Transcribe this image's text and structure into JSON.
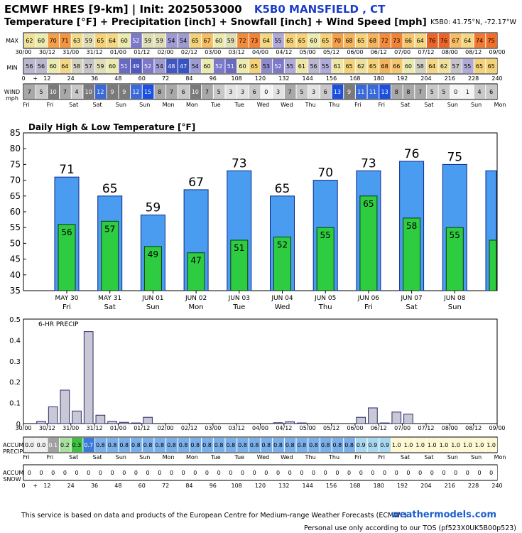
{
  "header": {
    "model": "ECMWF HRES [9-km] | Init: 2025053000",
    "location": "K5B0 MANSFIELD      , CT",
    "subtitle": "Temperature [°F] + Precipitation [inch] + Snowfall [inch] + Wind Speed [mph]",
    "coords": "K5B0: 41.75°N, -72.17°W"
  },
  "labels": {
    "max": "MAX",
    "min": "MIN",
    "wind": "WIND",
    "wind_unit": "mph",
    "accum_precip_1": "ACCUM",
    "accum_precip_2": "PRECIP",
    "accum_snow_1": "ACCUM",
    "accum_snow_2": "SNOW",
    "precip_panel": "6-HR PRECIP"
  },
  "strip": {
    "date_labels": [
      "30/00",
      "30/12",
      "31/00",
      "31/12",
      "01/00",
      "01/12",
      "02/00",
      "02/12",
      "03/00",
      "03/12",
      "04/00",
      "04/12",
      "05/00",
      "05/12",
      "06/00",
      "06/12",
      "07/00",
      "07/12",
      "08/00",
      "08/12",
      "09/00"
    ],
    "hour_labels": [
      "0",
      "+",
      "12",
      "24",
      "36",
      "48",
      "60",
      "72",
      "84",
      "96",
      "108",
      "120",
      "132",
      "144",
      "156",
      "168",
      "180",
      "192",
      "204",
      "216",
      "228",
      "240"
    ],
    "day_labels": [
      "Fri",
      "Fri",
      "Sat",
      "Sat",
      "Sun",
      "Sun",
      "Mon",
      "Mon",
      "Tue",
      "Tue",
      "Wed",
      "Wed",
      "Thu",
      "Thu",
      "Fri",
      "Fri",
      "Sat",
      "Sat",
      "Sun",
      "Sun",
      "Mon"
    ],
    "max_values": [
      62,
      60,
      70,
      71,
      63,
      59,
      65,
      64,
      60,
      52,
      59,
      59,
      54,
      54,
      65,
      67,
      60,
      59,
      72,
      73,
      64,
      55,
      65,
      65,
      60,
      65,
      70,
      68,
      65,
      68,
      72,
      73,
      66,
      64,
      76,
      76,
      67,
      64,
      74,
      75
    ],
    "min_values": [
      56,
      56,
      60,
      64,
      58,
      57,
      59,
      60,
      51,
      49,
      52,
      54,
      48,
      47,
      54,
      60,
      52,
      51,
      60,
      65,
      53,
      52,
      55,
      61,
      56,
      55,
      61,
      65,
      62,
      65,
      68,
      66,
      60,
      58,
      64,
      62,
      57,
      55,
      65,
      65
    ],
    "wind_values": [
      7,
      5,
      10,
      7,
      4,
      10,
      12,
      9,
      9,
      12,
      15,
      8,
      7,
      6,
      10,
      7,
      5,
      3,
      3,
      6,
      0,
      3,
      7,
      5,
      3,
      6,
      13,
      9,
      11,
      11,
      13,
      8,
      8,
      7,
      5,
      5,
      0,
      1,
      4,
      6
    ],
    "accum_precip": [
      "0.0",
      "0.0",
      "0.1",
      "0.2",
      "0.3",
      "0.7",
      "0.8",
      "0.8",
      "0.8",
      "0.8",
      "0.8",
      "0.8",
      "0.8",
      "0.8",
      "0.8",
      "0.8",
      "0.8",
      "0.8",
      "0.8",
      "0.8",
      "0.8",
      "0.8",
      "0.8",
      "0.8",
      "0.8",
      "0.8",
      "0.8",
      "0.8",
      "0.9",
      "0.9",
      "0.9",
      "1.0",
      "1.0",
      "1.0",
      "1.0",
      "1.0",
      "1.0",
      "1.0",
      "1.0",
      "1.0"
    ],
    "accum_snow": [
      "0",
      "0",
      "0",
      "0",
      "0",
      "0",
      "0",
      "0",
      "0",
      "0",
      "0",
      "0",
      "0",
      "0",
      "0",
      "0",
      "0",
      "0",
      "0",
      "0",
      "0",
      "0",
      "0",
      "0",
      "0",
      "0",
      "0",
      "0",
      "0",
      "0",
      "0",
      "0",
      "0",
      "0",
      "0",
      "0",
      "0",
      "0",
      "0",
      "0"
    ]
  },
  "chart_data": [
    {
      "type": "bar",
      "title": "Daily High & Low Temperature [°F]",
      "categories": [
        "MAY 30",
        "MAY 31",
        "JUN 01",
        "JUN 02",
        "JUN 03",
        "JUN 04",
        "JUN 05",
        "JUN 06",
        "JUN 07",
        "JUN 08",
        ""
      ],
      "weekdays": [
        "Fri",
        "Sat",
        "Sun",
        "Mon",
        "Tue",
        "Wed",
        "Thu",
        "Fri",
        "Sat",
        "Sun",
        ""
      ],
      "series": [
        {
          "name": "High",
          "values": [
            71,
            65,
            59,
            67,
            73,
            65,
            70,
            73,
            76,
            75,
            73
          ],
          "color": "#4a9cf0"
        },
        {
          "name": "Low",
          "values": [
            56,
            57,
            49,
            47,
            51,
            52,
            55,
            65,
            58,
            55,
            51
          ],
          "color": "#2ecc40"
        }
      ],
      "value_labels_count": 10,
      "ylim": [
        35,
        85
      ],
      "yticks": [
        35,
        40,
        45,
        50,
        55,
        60,
        65,
        70,
        75,
        80,
        85
      ],
      "grid": false
    },
    {
      "type": "bar",
      "title": "6-HR PRECIP",
      "x_labels": [
        "30/00",
        "30/12",
        "31/00",
        "31/12",
        "01/00",
        "01/12",
        "02/00",
        "02/12",
        "03/00",
        "03/12",
        "04/00",
        "04/12",
        "05/00",
        "05/12",
        "06/00",
        "06/12",
        "07/00",
        "07/12",
        "08/00",
        "08/12",
        "09/00"
      ],
      "values": [
        0,
        0.01,
        0.08,
        0.16,
        0.06,
        0.44,
        0.04,
        0.01,
        0.006,
        0.003,
        0.03,
        0,
        0,
        0,
        0,
        0,
        0,
        0,
        0,
        0,
        0,
        0.004,
        0.008,
        0.003,
        0,
        0,
        0,
        0,
        0.03,
        0.075,
        0.003,
        0.055,
        0.045,
        0,
        0,
        0,
        0,
        0,
        0,
        0
      ],
      "ylim": [
        0,
        0.5
      ],
      "yticks": [
        0,
        0.1,
        0.2,
        0.3,
        0.4,
        0.5
      ],
      "color": "#c8c8d6"
    }
  ]
}
